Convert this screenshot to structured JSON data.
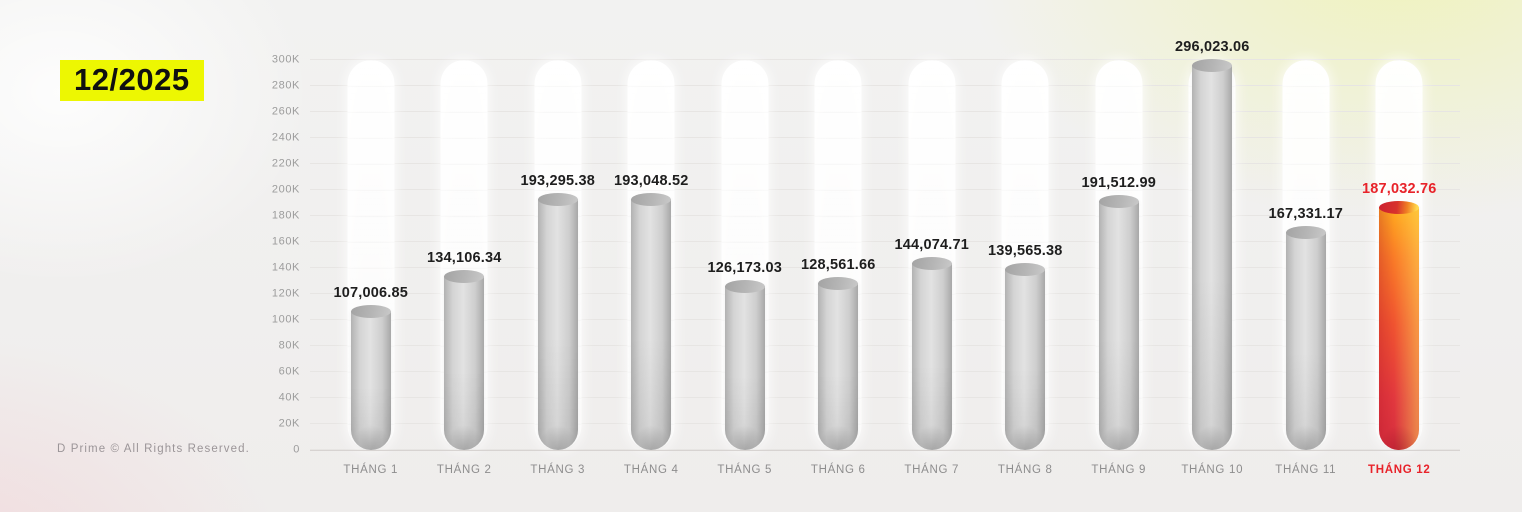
{
  "header": {
    "period": "12/2025",
    "badge_color": "#edf702"
  },
  "footer": {
    "copyright": "D Prime © All Rights Reserved."
  },
  "chart_data": {
    "type": "bar",
    "title": "",
    "xlabel": "",
    "ylabel": "",
    "categories": [
      "THÁNG 1",
      "THÁNG 2",
      "THÁNG 3",
      "THÁNG 4",
      "THÁNG 5",
      "THÁNG 6",
      "THÁNG 7",
      "THÁNG 8",
      "THÁNG 9",
      "THÁNG 10",
      "THÁNG 11",
      "THÁNG 12"
    ],
    "values": [
      107006.85,
      134106.34,
      193295.38,
      193048.52,
      126173.03,
      128561.66,
      144074.71,
      139565.38,
      191512.99,
      296023.06,
      167331.17,
      187032.76
    ],
    "value_labels": [
      "107,006.85",
      "134,106.34",
      "193,295.38",
      "193,048.52",
      "126,173.03",
      "128,561.66",
      "144,074.71",
      "139,565.38",
      "191,512.99",
      "296,023.06",
      "167,331.17",
      "187,032.76"
    ],
    "ylim": [
      0,
      300000
    ],
    "y_ticks": [
      "0",
      "20K",
      "40K",
      "60K",
      "80K",
      "100K",
      "120K",
      "140K",
      "160K",
      "180K",
      "200K",
      "220K",
      "240K",
      "260K",
      "280K",
      "300K"
    ],
    "grid": true,
    "legend": null,
    "highlight_index": 11,
    "colors": {
      "bar": "#c9c9c9",
      "highlight_gradient_top": "#ffab1e",
      "highlight_gradient_bottom": "#d62f3e",
      "highlight_text": "#e8232a",
      "axis_text": "#9c9c9c",
      "month_text": "#8d8d8d"
    }
  }
}
